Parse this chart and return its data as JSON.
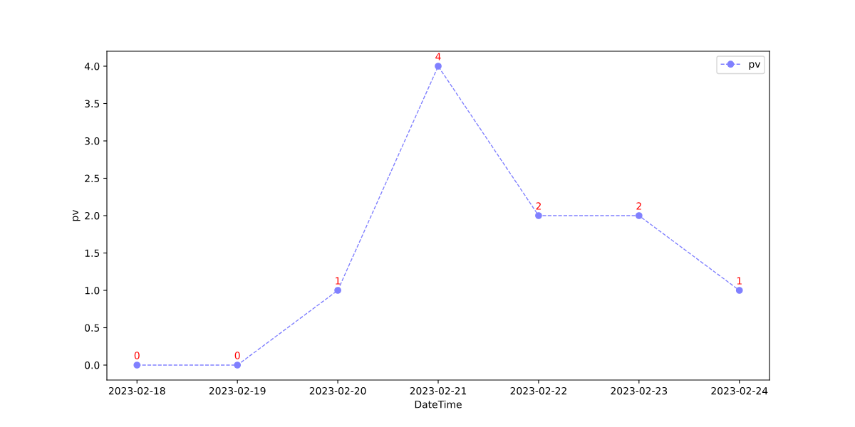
{
  "chart_data": {
    "type": "line",
    "xlabel": "DateTime",
    "ylabel": "pv",
    "categories": [
      "2023-02-18",
      "2023-02-19",
      "2023-02-20",
      "2023-02-21",
      "2023-02-22",
      "2023-02-23",
      "2023-02-24"
    ],
    "series": [
      {
        "name": "pv",
        "color": "#8080ff",
        "values": [
          0,
          0,
          1,
          4,
          2,
          2,
          1
        ]
      }
    ],
    "ylim": [
      -0.2,
      4.2
    ],
    "yticks": [
      {
        "value": 0,
        "label": "0.0"
      },
      {
        "value": 0.5,
        "label": "0.5"
      },
      {
        "value": 1,
        "label": "1.0"
      },
      {
        "value": 1.5,
        "label": "1.5"
      },
      {
        "value": 2,
        "label": "2.0"
      },
      {
        "value": 2.5,
        "label": "2.5"
      },
      {
        "value": 3,
        "label": "3.0"
      },
      {
        "value": 3.5,
        "label": "3.5"
      },
      {
        "value": 4,
        "label": "4.0"
      }
    ],
    "marker": "circle",
    "line_style": "dashed",
    "data_labels": true,
    "legend": "top right",
    "grid": false
  }
}
